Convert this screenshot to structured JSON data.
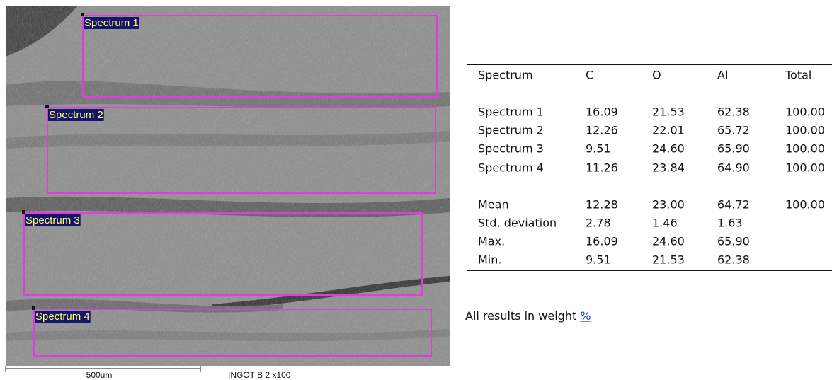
{
  "image": {
    "regions": [
      {
        "label": "Spectrum 1"
      },
      {
        "label": "Spectrum 2"
      },
      {
        "label": "Spectrum 3"
      },
      {
        "label": "Spectrum 4"
      }
    ],
    "scale_bar": "500um",
    "caption": "INGOT B 2 x100"
  },
  "table": {
    "header": [
      "Spectrum",
      "C",
      "O",
      "Al",
      "Total"
    ],
    "rows": [
      [
        "Spectrum 1",
        "16.09",
        "21.53",
        "62.38",
        "100.00"
      ],
      [
        "Spectrum 2",
        "12.26",
        "22.01",
        "65.72",
        "100.00"
      ],
      [
        "Spectrum 3",
        "9.51",
        "24.60",
        "65.90",
        "100.00"
      ],
      [
        "Spectrum 4",
        "11.26",
        "23.84",
        "64.90",
        "100.00"
      ],
      [
        "Mean",
        "12.28",
        "23.00",
        "64.72",
        "100.00"
      ],
      [
        "Std. deviation",
        "2.78",
        "1.46",
        "1.63"
      ],
      [
        "Max.",
        "16.09",
        "24.60",
        "65.90"
      ],
      [
        "Min.",
        "9.51",
        "21.53",
        "62.38"
      ]
    ]
  },
  "note": {
    "text": "All results in weight",
    "unit": "%"
  }
}
